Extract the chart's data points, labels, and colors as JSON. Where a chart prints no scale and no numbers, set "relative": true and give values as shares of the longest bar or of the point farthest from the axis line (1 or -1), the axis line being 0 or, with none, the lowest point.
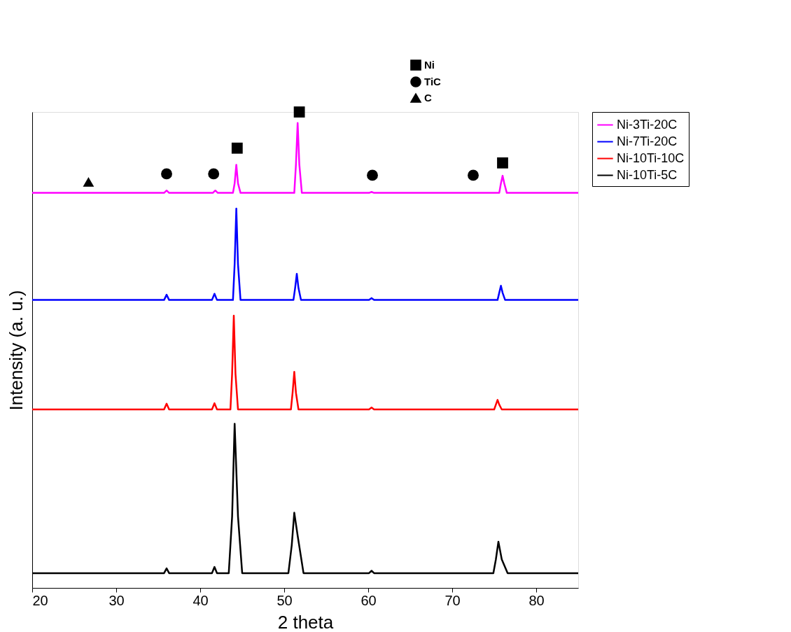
{
  "chart_data": {
    "type": "line",
    "xlabel": "2 theta",
    "ylabel": "Intensity (a. u.)",
    "relative": true,
    "xlim": [
      20,
      85
    ],
    "xticks": [
      20,
      30,
      40,
      50,
      60,
      70,
      80
    ],
    "tick_labels": "x",
    "grid": false,
    "legend": "top right",
    "line_style": "solid",
    "marker": "none",
    "series": [
      {
        "name": "Ni-3Ti-20C",
        "color": "#ff00ff",
        "x": [
          20,
          35.7,
          36,
          36.3,
          41.5,
          41.8,
          42.1,
          43.9,
          44.1,
          44.3,
          44.5,
          44.8,
          51.2,
          51.4,
          51.6,
          51.8,
          52.1,
          60.1,
          60.4,
          60.7,
          75.6,
          75.8,
          76,
          76.2,
          76.5,
          85
        ],
        "values": [
          0.83,
          0.83,
          0.835,
          0.83,
          0.83,
          0.835,
          0.83,
          0.83,
          0.85,
          0.889,
          0.85,
          0.83,
          0.83,
          0.89,
          0.977,
          0.89,
          0.83,
          0.83,
          0.832,
          0.83,
          0.83,
          0.85,
          0.866,
          0.85,
          0.83,
          0.83
        ]
      },
      {
        "name": "Ni-7Ti-20C",
        "color": "#0000ff",
        "x": [
          20,
          35.7,
          36,
          36.3,
          41.4,
          41.7,
          42,
          43.9,
          44.1,
          44.3,
          44.5,
          44.8,
          51.1,
          51.3,
          51.5,
          51.7,
          52,
          60.1,
          60.4,
          60.7,
          75.4,
          75.6,
          75.8,
          76,
          76.3,
          85
        ],
        "values": [
          0.605,
          0.605,
          0.616,
          0.605,
          0.605,
          0.618,
          0.605,
          0.605,
          0.68,
          0.797,
          0.68,
          0.605,
          0.605,
          0.63,
          0.66,
          0.63,
          0.605,
          0.605,
          0.609,
          0.605,
          0.605,
          0.62,
          0.635,
          0.62,
          0.605,
          0.605
        ]
      },
      {
        "name": "Ni-10Ti-10C",
        "color": "#ff0000",
        "x": [
          20,
          35.7,
          36,
          36.3,
          41.4,
          41.7,
          42,
          43.6,
          43.8,
          44,
          44.2,
          44.5,
          50.8,
          51,
          51.2,
          51.4,
          51.7,
          60.1,
          60.4,
          60.7,
          75,
          75.2,
          75.4,
          75.6,
          75.9,
          85
        ],
        "values": [
          0.375,
          0.375,
          0.387,
          0.375,
          0.375,
          0.388,
          0.375,
          0.375,
          0.45,
          0.572,
          0.45,
          0.375,
          0.375,
          0.41,
          0.454,
          0.41,
          0.375,
          0.375,
          0.379,
          0.375,
          0.375,
          0.385,
          0.395,
          0.385,
          0.375,
          0.375
        ]
      },
      {
        "name": "Ni-10Ti-5C",
        "color": "#000000",
        "x": [
          20,
          35.7,
          36,
          36.3,
          41.4,
          41.7,
          42,
          43.4,
          43.8,
          44.1,
          44.5,
          45,
          50.5,
          50.9,
          51.2,
          51.6,
          52.3,
          60.1,
          60.4,
          60.7,
          74.9,
          75.2,
          75.5,
          75.9,
          76.6,
          85
        ],
        "values": [
          0.031,
          0.031,
          0.041,
          0.031,
          0.031,
          0.044,
          0.031,
          0.031,
          0.15,
          0.345,
          0.15,
          0.031,
          0.031,
          0.09,
          0.158,
          0.11,
          0.031,
          0.031,
          0.036,
          0.031,
          0.031,
          0.06,
          0.097,
          0.06,
          0.031,
          0.031
        ]
      },
      {
        "name": "Ni",
        "type": "scatter",
        "marker": "square",
        "color": "#000000",
        "x": [
          44.4,
          51.8,
          76.0
        ],
        "values": [
          0.924,
          1.0,
          0.893
        ]
      },
      {
        "name": "TiC",
        "type": "scatter",
        "marker": "circle",
        "color": "#000000",
        "x": [
          36.0,
          41.6,
          60.5,
          72.5
        ],
        "values": [
          0.87,
          0.87,
          0.867,
          0.867
        ]
      },
      {
        "name": "C",
        "type": "scatter",
        "marker": "triangle",
        "color": "#000000",
        "x": [
          26.7
        ],
        "values": [
          0.853
        ]
      }
    ]
  }
}
